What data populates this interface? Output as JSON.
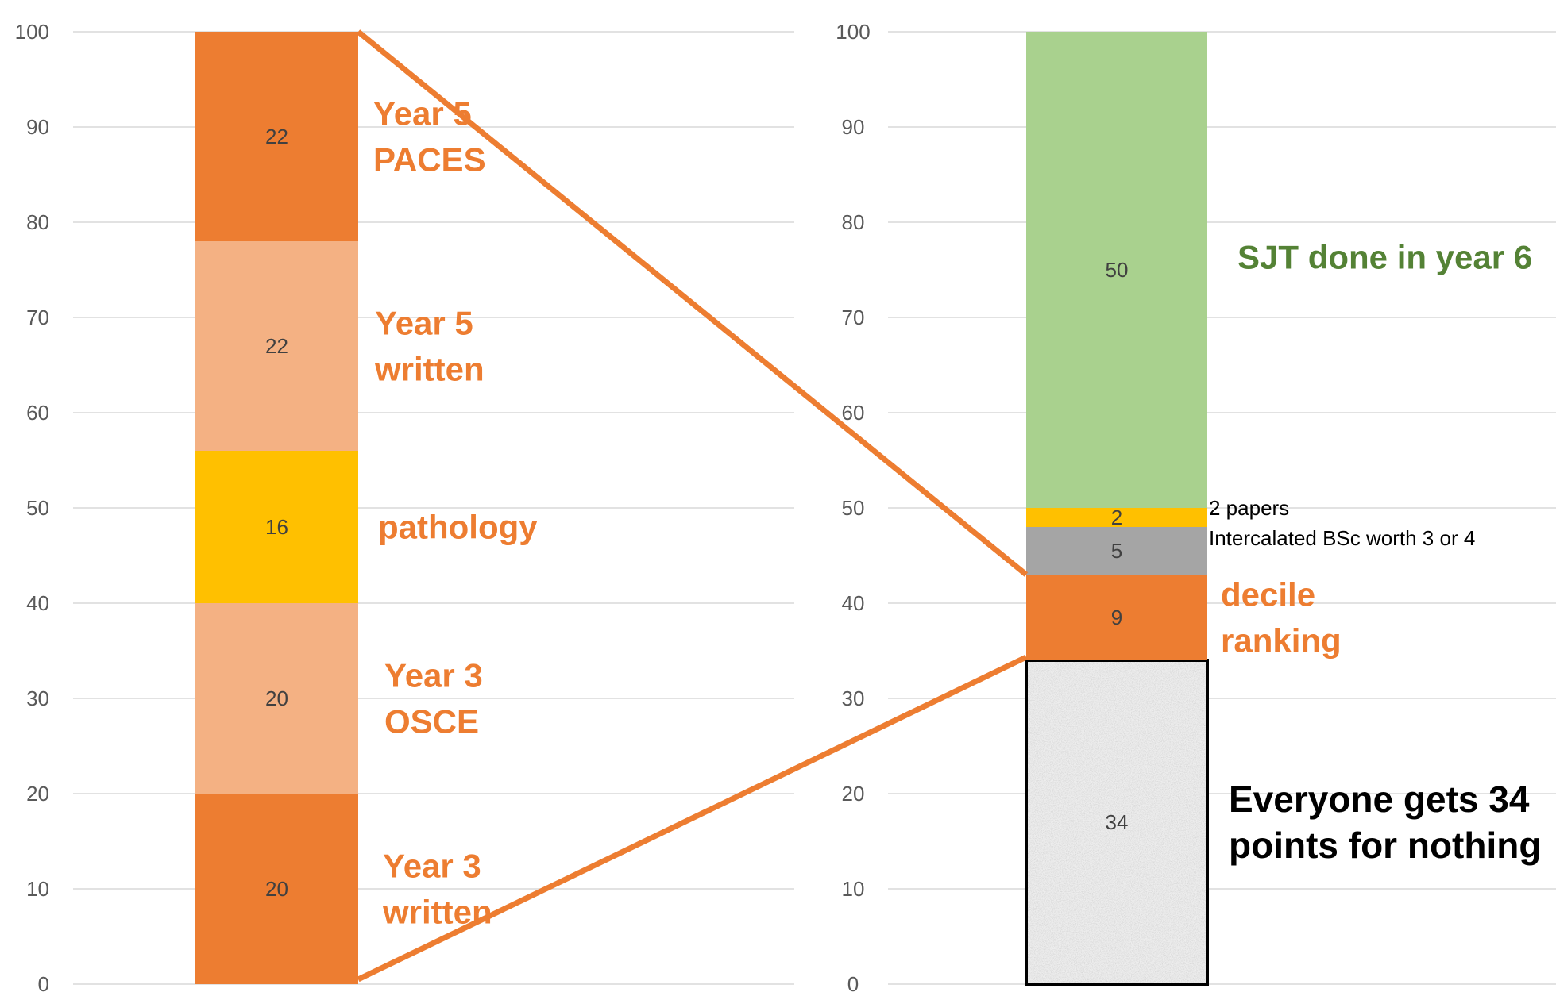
{
  "chart_data": [
    {
      "type": "bar",
      "stacked": true,
      "ylim": [
        0,
        100
      ],
      "yticks": [
        0,
        10,
        20,
        30,
        40,
        50,
        60,
        70,
        80,
        90,
        100
      ],
      "grid": true,
      "segments": [
        {
          "value": 20,
          "label": "Year 3\nwritten",
          "color": "#ED7D31",
          "label_color": "#ED7D31"
        },
        {
          "value": 20,
          "label": "Year 3\nOSCE",
          "color": "#F4B183",
          "label_color": "#ED7D31"
        },
        {
          "value": 16,
          "label": "pathology",
          "color": "#FFC000",
          "label_color": "#ED7D31"
        },
        {
          "value": 22,
          "label": "Year 5\nwritten",
          "color": "#F4B183",
          "label_color": "#ED7D31"
        },
        {
          "value": 22,
          "label": "Year 5\nPACES",
          "color": "#ED7D31",
          "label_color": "#ED7D31"
        }
      ]
    },
    {
      "type": "bar",
      "stacked": true,
      "ylim": [
        0,
        100
      ],
      "yticks": [
        0,
        10,
        20,
        30,
        40,
        50,
        60,
        70,
        80,
        90,
        100
      ],
      "grid": true,
      "segments": [
        {
          "value": 34,
          "label": "Everyone gets 34\npoints for nothing",
          "color": "#EDEDED",
          "label_color": "#000000",
          "outlined": true
        },
        {
          "value": 9,
          "label": "decile\nranking",
          "color": "#ED7D31",
          "label_color": "#ED7D31"
        },
        {
          "value": 5,
          "label": "Intercalated BSc worth 3 or 4",
          "color": "#A5A5A5",
          "label_color": "#000000"
        },
        {
          "value": 2,
          "label": "2 papers",
          "color": "#FFC000",
          "label_color": "#000000"
        },
        {
          "value": 50,
          "label": "SJT done in year 6",
          "color": "#A9D18E",
          "label_color": "#548235"
        }
      ]
    }
  ],
  "connector": {
    "color": "#ED7D31"
  }
}
